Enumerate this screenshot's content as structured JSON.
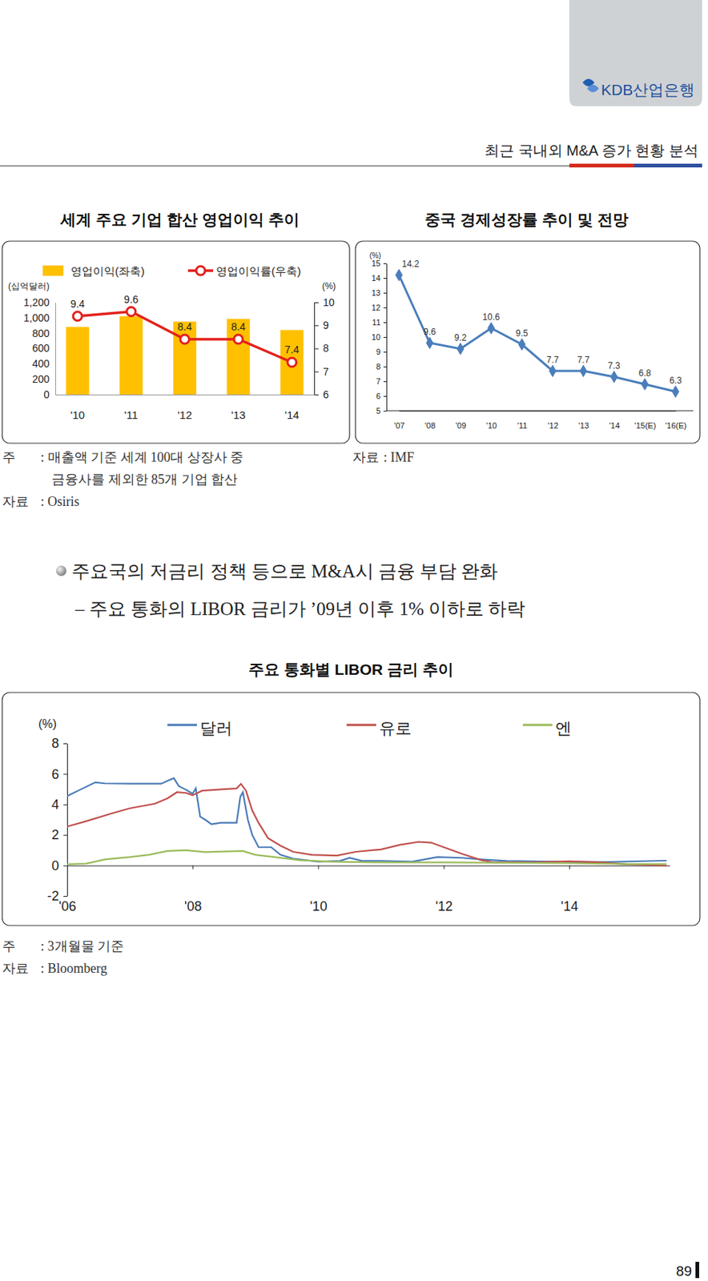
{
  "header": {
    "logo": "KDB산업은행",
    "section_title": "최근 국내외 M&A 증가 현황 분석"
  },
  "chart_data": [
    {
      "type": "bar",
      "title": "세계 주요 기업 합산 영업이익 추이",
      "categories": [
        "'10",
        "'11",
        "'12",
        "'13",
        "'14"
      ],
      "ylabel": "(십억달러)",
      "y2label": "(%)",
      "series": [
        {
          "name": "영업이익(좌축)",
          "type": "bar",
          "color": "#ffc000",
          "values": [
            880,
            1020,
            950,
            985,
            840
          ]
        },
        {
          "name": "영업이익률(우축)",
          "type": "line",
          "axis": "y2",
          "color": "#e3211c",
          "marker": "circle",
          "data_labels": true,
          "values": [
            9.4,
            9.6,
            8.4,
            8.4,
            7.4
          ]
        }
      ],
      "ylim": [
        0,
        1200
      ],
      "yticks": [
        0,
        200,
        400,
        600,
        800,
        {
          "value": 1000,
          "label": "1,000"
        },
        {
          "value": 1200,
          "label": "1,200"
        }
      ],
      "y2lim": [
        6,
        10
      ],
      "y2ticks": [
        6,
        7,
        8,
        9,
        10
      ],
      "legend": "top"
    },
    {
      "type": "line",
      "title": "중국 경제성장률 추이 및 전망",
      "categories": [
        "'07",
        "'08",
        "'09",
        "'10",
        "'11",
        "'12",
        "'13",
        "'14",
        "'15(E)",
        "'16(E)"
      ],
      "ylabel": "(%)",
      "values": [
        14.2,
        9.6,
        9.2,
        10.6,
        9.5,
        7.7,
        7.7,
        7.3,
        6.8,
        6.3
      ],
      "color": "#4a7ebb",
      "marker": "diamond",
      "data_labels": true,
      "ylim": [
        5,
        15
      ],
      "yticks": [
        5,
        6,
        7,
        8,
        9,
        10,
        11,
        12,
        13,
        14,
        15
      ]
    },
    {
      "type": "line",
      "title": "주요 통화별 LIBOR 금리 추이",
      "ylabel": "(%)",
      "xlim": [
        2006,
        2015.6
      ],
      "xticks": [
        {
          "value": 2006,
          "label": "'06"
        },
        {
          "value": 2008,
          "label": "'08"
        },
        {
          "value": 2010,
          "label": "'10"
        },
        {
          "value": 2012,
          "label": "'12"
        },
        {
          "value": 2014,
          "label": "'14"
        }
      ],
      "ylim": [
        -2,
        8
      ],
      "yticks": [
        -2,
        0,
        2,
        4,
        6,
        8
      ],
      "legend": "top",
      "series": [
        {
          "name": "달러",
          "color": "#4a7bb7",
          "x": [
            2006.0,
            2006.2,
            2006.45,
            2006.6,
            2007.0,
            2007.5,
            2007.6,
            2007.7,
            2007.78,
            2007.9,
            2008.0,
            2008.05,
            2008.12,
            2008.2,
            2008.3,
            2008.45,
            2008.7,
            2008.76,
            2008.8,
            2008.88,
            2008.95,
            2009.05,
            2009.25,
            2009.4,
            2009.6,
            2010.0,
            2010.35,
            2010.5,
            2010.7,
            2011.0,
            2011.5,
            2011.9,
            2012.3,
            2012.6,
            2013.0,
            2014.0,
            2014.6,
            2015.0,
            2015.55
          ],
          "values": [
            4.55,
            4.95,
            5.45,
            5.38,
            5.36,
            5.36,
            5.55,
            5.72,
            5.2,
            4.95,
            4.7,
            5.05,
            3.2,
            3.0,
            2.7,
            2.8,
            2.8,
            4.5,
            4.8,
            3.0,
            2.0,
            1.2,
            1.2,
            0.7,
            0.45,
            0.25,
            0.3,
            0.5,
            0.3,
            0.3,
            0.25,
            0.55,
            0.5,
            0.4,
            0.3,
            0.24,
            0.23,
            0.27,
            0.32
          ]
        },
        {
          "name": "유로",
          "color": "#c0504d",
          "x": [
            2006.0,
            2006.3,
            2006.7,
            2007.0,
            2007.4,
            2007.6,
            2007.75,
            2007.9,
            2008.0,
            2008.15,
            2008.5,
            2008.7,
            2008.77,
            2008.85,
            2008.95,
            2009.05,
            2009.2,
            2009.4,
            2009.6,
            2009.9,
            2010.3,
            2010.6,
            2011.0,
            2011.3,
            2011.6,
            2011.8,
            2012.0,
            2012.3,
            2012.6,
            2012.8,
            2013.5,
            2014.0,
            2014.5,
            2014.9,
            2015.55
          ],
          "values": [
            2.55,
            2.9,
            3.4,
            3.75,
            4.05,
            4.4,
            4.8,
            4.75,
            4.6,
            4.9,
            5.0,
            5.05,
            5.35,
            4.9,
            3.6,
            2.8,
            1.8,
            1.3,
            0.9,
            0.7,
            0.65,
            0.9,
            1.05,
            1.35,
            1.55,
            1.5,
            1.2,
            0.75,
            0.35,
            0.2,
            0.22,
            0.28,
            0.2,
            0.08,
            0.0
          ]
        },
        {
          "name": "엔",
          "color": "#9bbb59",
          "x": [
            2006.0,
            2006.3,
            2006.6,
            2007.0,
            2007.3,
            2007.6,
            2007.9,
            2008.2,
            2008.5,
            2008.8,
            2009.0,
            2009.3,
            2009.7,
            2010.2,
            2011.0,
            2012.0,
            2013.0,
            2014.0,
            2015.0,
            2015.55
          ],
          "values": [
            0.08,
            0.12,
            0.4,
            0.55,
            0.7,
            0.95,
            1.0,
            0.88,
            0.92,
            0.95,
            0.7,
            0.55,
            0.35,
            0.25,
            0.2,
            0.2,
            0.18,
            0.15,
            0.1,
            0.1
          ]
        }
      ]
    }
  ],
  "notes": [
    {
      "label": "주",
      "lines": [
        ": 매출액 기준 세계 100대 상장사 중",
        "금융사를 제외한 85개 기업 합산"
      ]
    },
    {
      "label": "자료",
      "lines": [
        ": Osiris"
      ]
    },
    {
      "label": "자료",
      "lines": [
        ": IMF"
      ]
    },
    {
      "label": "주",
      "lines": [
        ": 3개월물 기준"
      ]
    },
    {
      "label": "자료",
      "lines": [
        ": Bloomberg"
      ]
    }
  ],
  "bullets": {
    "main": "주요국의 저금리 정책 등으로 M&A시 금융 부담 완화",
    "sub": "– 주요 통화의 LIBOR 금리가 ’09년 이후 1% 이하로 하락"
  },
  "page_number": "89"
}
